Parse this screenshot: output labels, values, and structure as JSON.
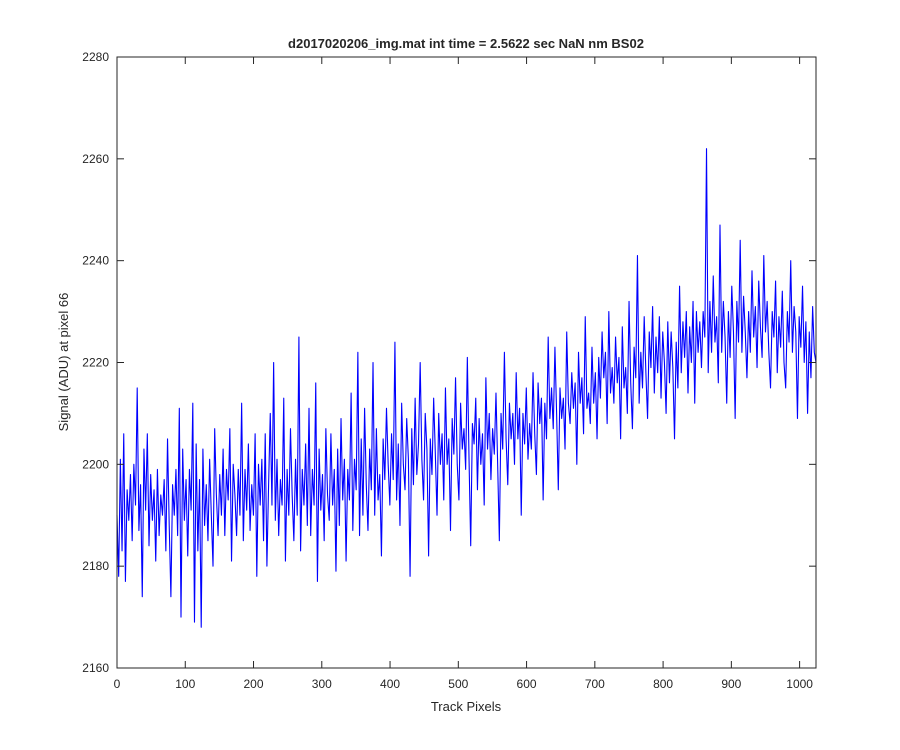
{
  "chart_data": {
    "type": "line",
    "title": "d2017020206_img.mat int time = 2.5622 sec  NaN nm BS02",
    "xlabel": "Track Pixels",
    "ylabel": "Signal (ADU) at pixel 66",
    "xlim": [
      0,
      1024
    ],
    "ylim": [
      2160,
      2280
    ],
    "xticks": [
      0,
      100,
      200,
      300,
      400,
      500,
      600,
      700,
      800,
      900,
      1000
    ],
    "yticks": [
      2160,
      2180,
      2200,
      2220,
      2240,
      2260,
      2280
    ],
    "grid": false,
    "legend": "none",
    "series_color": "#0000ff",
    "series": [
      {
        "values": [
          2190,
          2178,
          2201,
          2183,
          2206,
          2177,
          2195,
          2189,
          2198,
          2185,
          2200,
          2192,
          2215,
          2187,
          2196,
          2174,
          2203,
          2191,
          2206,
          2184,
          2198,
          2189,
          2195,
          2181,
          2199,
          2186,
          2194,
          2190,
          2197,
          2183,
          2205,
          2188,
          2174,
          2196,
          2190,
          2199,
          2186,
          2211,
          2170,
          2203,
          2189,
          2197,
          2182,
          2199,
          2191,
          2212,
          2169,
          2204,
          2183,
          2197,
          2168,
          2203,
          2188,
          2196,
          2185,
          2201,
          2190,
          2180,
          2207,
          2194,
          2186,
          2198,
          2190,
          2203,
          2186,
          2199,
          2193,
          2207,
          2181,
          2200,
          2194,
          2186,
          2199,
          2190,
          2212,
          2185,
          2199,
          2191,
          2204,
          2187,
          2196,
          2190,
          2206,
          2178,
          2200,
          2192,
          2201,
          2185,
          2206,
          2180,
          2196,
          2210,
          2192,
          2220,
          2189,
          2201,
          2186,
          2197,
          2192,
          2213,
          2181,
          2199,
          2190,
          2207,
          2194,
          2185,
          2201,
          2190,
          2225,
          2183,
          2199,
          2192,
          2204,
          2188,
          2211,
          2186,
          2199,
          2192,
          2216,
          2177,
          2203,
          2191,
          2198,
          2185,
          2207,
          2194,
          2189,
          2206,
          2192,
          2199,
          2179,
          2203,
          2188,
          2209,
          2193,
          2201,
          2181,
          2199,
          2193,
          2214,
          2187,
          2201,
          2195,
          2222,
          2186,
          2205,
          2190,
          2211,
          2196,
          2187,
          2203,
          2195,
          2220,
          2190,
          2207,
          2193,
          2198,
          2182,
          2205,
          2197,
          2211,
          2200,
          2192,
          2206,
          2197,
          2224,
          2193,
          2204,
          2188,
          2212,
          2200,
          2195,
          2209,
          2201,
          2178,
          2207,
          2196,
          2213,
          2198,
          2204,
          2220,
          2201,
          2193,
          2210,
          2203,
          2182,
          2205,
          2198,
          2213,
          2202,
          2190,
          2210,
          2200,
          2206,
          2193,
          2215,
          2200,
          2205,
          2187,
          2209,
          2202,
          2217,
          2200,
          2193,
          2212,
          2203,
          2207,
          2199,
          2221,
          2201,
          2184,
          2208,
          2204,
          2213,
          2195,
          2209,
          2200,
          2206,
          2192,
          2217,
          2203,
          2210,
          2197,
          2207,
          2202,
          2214,
          2200,
          2185,
          2210,
          2203,
          2222,
          2205,
          2196,
          2212,
          2205,
          2210,
          2200,
          2218,
          2205,
          2211,
          2190,
          2210,
          2204,
          2215,
          2201,
          2208,
          2203,
          2218,
          2206,
          2198,
          2216,
          2208,
          2213,
          2193,
          2212,
          2205,
          2225,
          2209,
          2215,
          2207,
          2223,
          2210,
          2195,
          2215,
          2209,
          2213,
          2203,
          2226,
          2212,
          2208,
          2218,
          2211,
          2216,
          2200,
          2222,
          2212,
          2217,
          2206,
          2229,
          2211,
          2214,
          2208,
          2223,
          2212,
          2218,
          2205,
          2221,
          2213,
          2226,
          2217,
          2222,
          2208,
          2230,
          2214,
          2219,
          2212,
          2225,
          2216,
          2221,
          2205,
          2227,
          2215,
          2219,
          2210,
          2232,
          2216,
          2207,
          2223,
          2217,
          2241,
          2212,
          2222,
          2215,
          2229,
          2218,
          2209,
          2226,
          2219,
          2231,
          2214,
          2225,
          2218,
          2229,
          2213,
          2226,
          2220,
          2210,
          2228,
          2216,
          2226,
          2219,
          2205,
          2224,
          2215,
          2235,
          2218,
          2228,
          2221,
          2230,
          2214,
          2227,
          2220,
          2232,
          2212,
          2230,
          2222,
          2228,
          2219,
          2230,
          2225,
          2262,
          2218,
          2232,
          2222,
          2237,
          2224,
          2229,
          2216,
          2247,
          2222,
          2232,
          2225,
          2212,
          2230,
          2221,
          2235,
          2226,
          2209,
          2232,
          2224,
          2244,
          2222,
          2233,
          2226,
          2217,
          2230,
          2222,
          2238,
          2225,
          2231,
          2219,
          2236,
          2227,
          2221,
          2241,
          2226,
          2232,
          2222,
          2215,
          2230,
          2225,
          2236,
          2218,
          2229,
          2223,
          2234,
          2220,
          2215,
          2230,
          2224,
          2240,
          2222,
          2231,
          2226,
          2209,
          2229,
          2223,
          2235,
          2220,
          2228,
          2210,
          2226,
          2217,
          2231,
          2222,
          2220
        ]
      }
    ]
  }
}
